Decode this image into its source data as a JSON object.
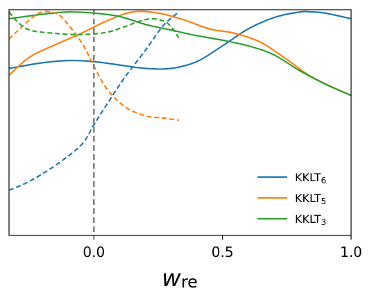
{
  "chart_data": {
    "type": "line",
    "xlabel_main": "w",
    "xlabel_sub": "re",
    "xlim": [
      -0.33,
      1.0
    ],
    "ylim": [
      0,
      1
    ],
    "y_ticks_visible": false,
    "x_ticks": [
      {
        "value": 0.0,
        "label": "0.0"
      },
      {
        "value": 0.5,
        "label": "0.5"
      },
      {
        "value": 1.0,
        "label": "1.0"
      }
    ],
    "reference_line": {
      "x": 0.0,
      "style": "dashed",
      "color": "#808080"
    },
    "legend": {
      "placement": "lower-right",
      "entries": [
        {
          "base": "KKLT",
          "sub": "6",
          "color": "#1f77b4"
        },
        {
          "base": "KKLT",
          "sub": "5",
          "color": "#ff7f0e"
        },
        {
          "base": "KKLT",
          "sub": "3",
          "color": "#2ca02c"
        }
      ]
    },
    "series": [
      {
        "name": "KKLT6",
        "color": "#1f77b4",
        "style": "solid",
        "x": [
          -0.33,
          -0.2,
          -0.1,
          0.0,
          0.1,
          0.2,
          0.3,
          0.4,
          0.5,
          0.6,
          0.7,
          0.8,
          0.85,
          0.9,
          1.0
        ],
        "y": [
          0.74,
          0.765,
          0.775,
          0.77,
          0.755,
          0.74,
          0.74,
          0.77,
          0.84,
          0.915,
          0.965,
          0.99,
          0.99,
          0.985,
          0.96
        ]
      },
      {
        "name": "KKLT5",
        "color": "#ff7f0e",
        "style": "solid",
        "x": [
          -0.33,
          -0.25,
          -0.15,
          -0.05,
          0.05,
          0.15,
          0.25,
          0.35,
          0.45,
          0.55,
          0.65,
          0.75,
          0.85,
          1.0
        ],
        "y": [
          0.71,
          0.79,
          0.845,
          0.895,
          0.95,
          0.99,
          0.985,
          0.955,
          0.915,
          0.895,
          0.855,
          0.78,
          0.7,
          0.62
        ]
      },
      {
        "name": "KKLT3",
        "color": "#2ca02c",
        "style": "solid",
        "x": [
          -0.33,
          -0.2,
          -0.1,
          0.0,
          0.1,
          0.2,
          0.3,
          0.4,
          0.5,
          0.6,
          0.7,
          0.8,
          0.9,
          1.0
        ],
        "y": [
          0.96,
          0.98,
          0.99,
          0.985,
          0.97,
          0.935,
          0.91,
          0.885,
          0.865,
          0.84,
          0.8,
          0.73,
          0.67,
          0.62
        ]
      },
      {
        "name": "KKLT6 (dashed)",
        "color": "#1f77b4",
        "style": "dashed",
        "x": [
          -0.33,
          -0.25,
          -0.15,
          -0.05,
          0.0,
          0.05,
          0.12,
          0.2,
          0.27,
          0.33
        ],
        "y": [
          0.2,
          0.24,
          0.31,
          0.4,
          0.49,
          0.58,
          0.7,
          0.82,
          0.93,
          0.99
        ]
      },
      {
        "name": "KKLT5 (dashed)",
        "color": "#ff7f0e",
        "style": "dashed",
        "x": [
          -0.33,
          -0.25,
          -0.2,
          -0.14,
          -0.09,
          -0.04,
          0.0,
          0.05,
          0.12,
          0.2,
          0.27,
          0.33
        ],
        "y": [
          0.87,
          0.955,
          0.99,
          0.98,
          0.92,
          0.84,
          0.75,
          0.65,
          0.57,
          0.53,
          0.52,
          0.51
        ]
      },
      {
        "name": "KKLT3 (dashed)",
        "color": "#2ca02c",
        "style": "dashed",
        "x": [
          -0.33,
          -0.3,
          -0.25,
          -0.15,
          -0.05,
          0.05,
          0.12,
          0.18,
          0.23,
          0.28,
          0.31,
          0.33
        ],
        "y": [
          0.99,
          0.95,
          0.91,
          0.895,
          0.89,
          0.9,
          0.925,
          0.95,
          0.96,
          0.945,
          0.91,
          0.875
        ]
      }
    ]
  }
}
